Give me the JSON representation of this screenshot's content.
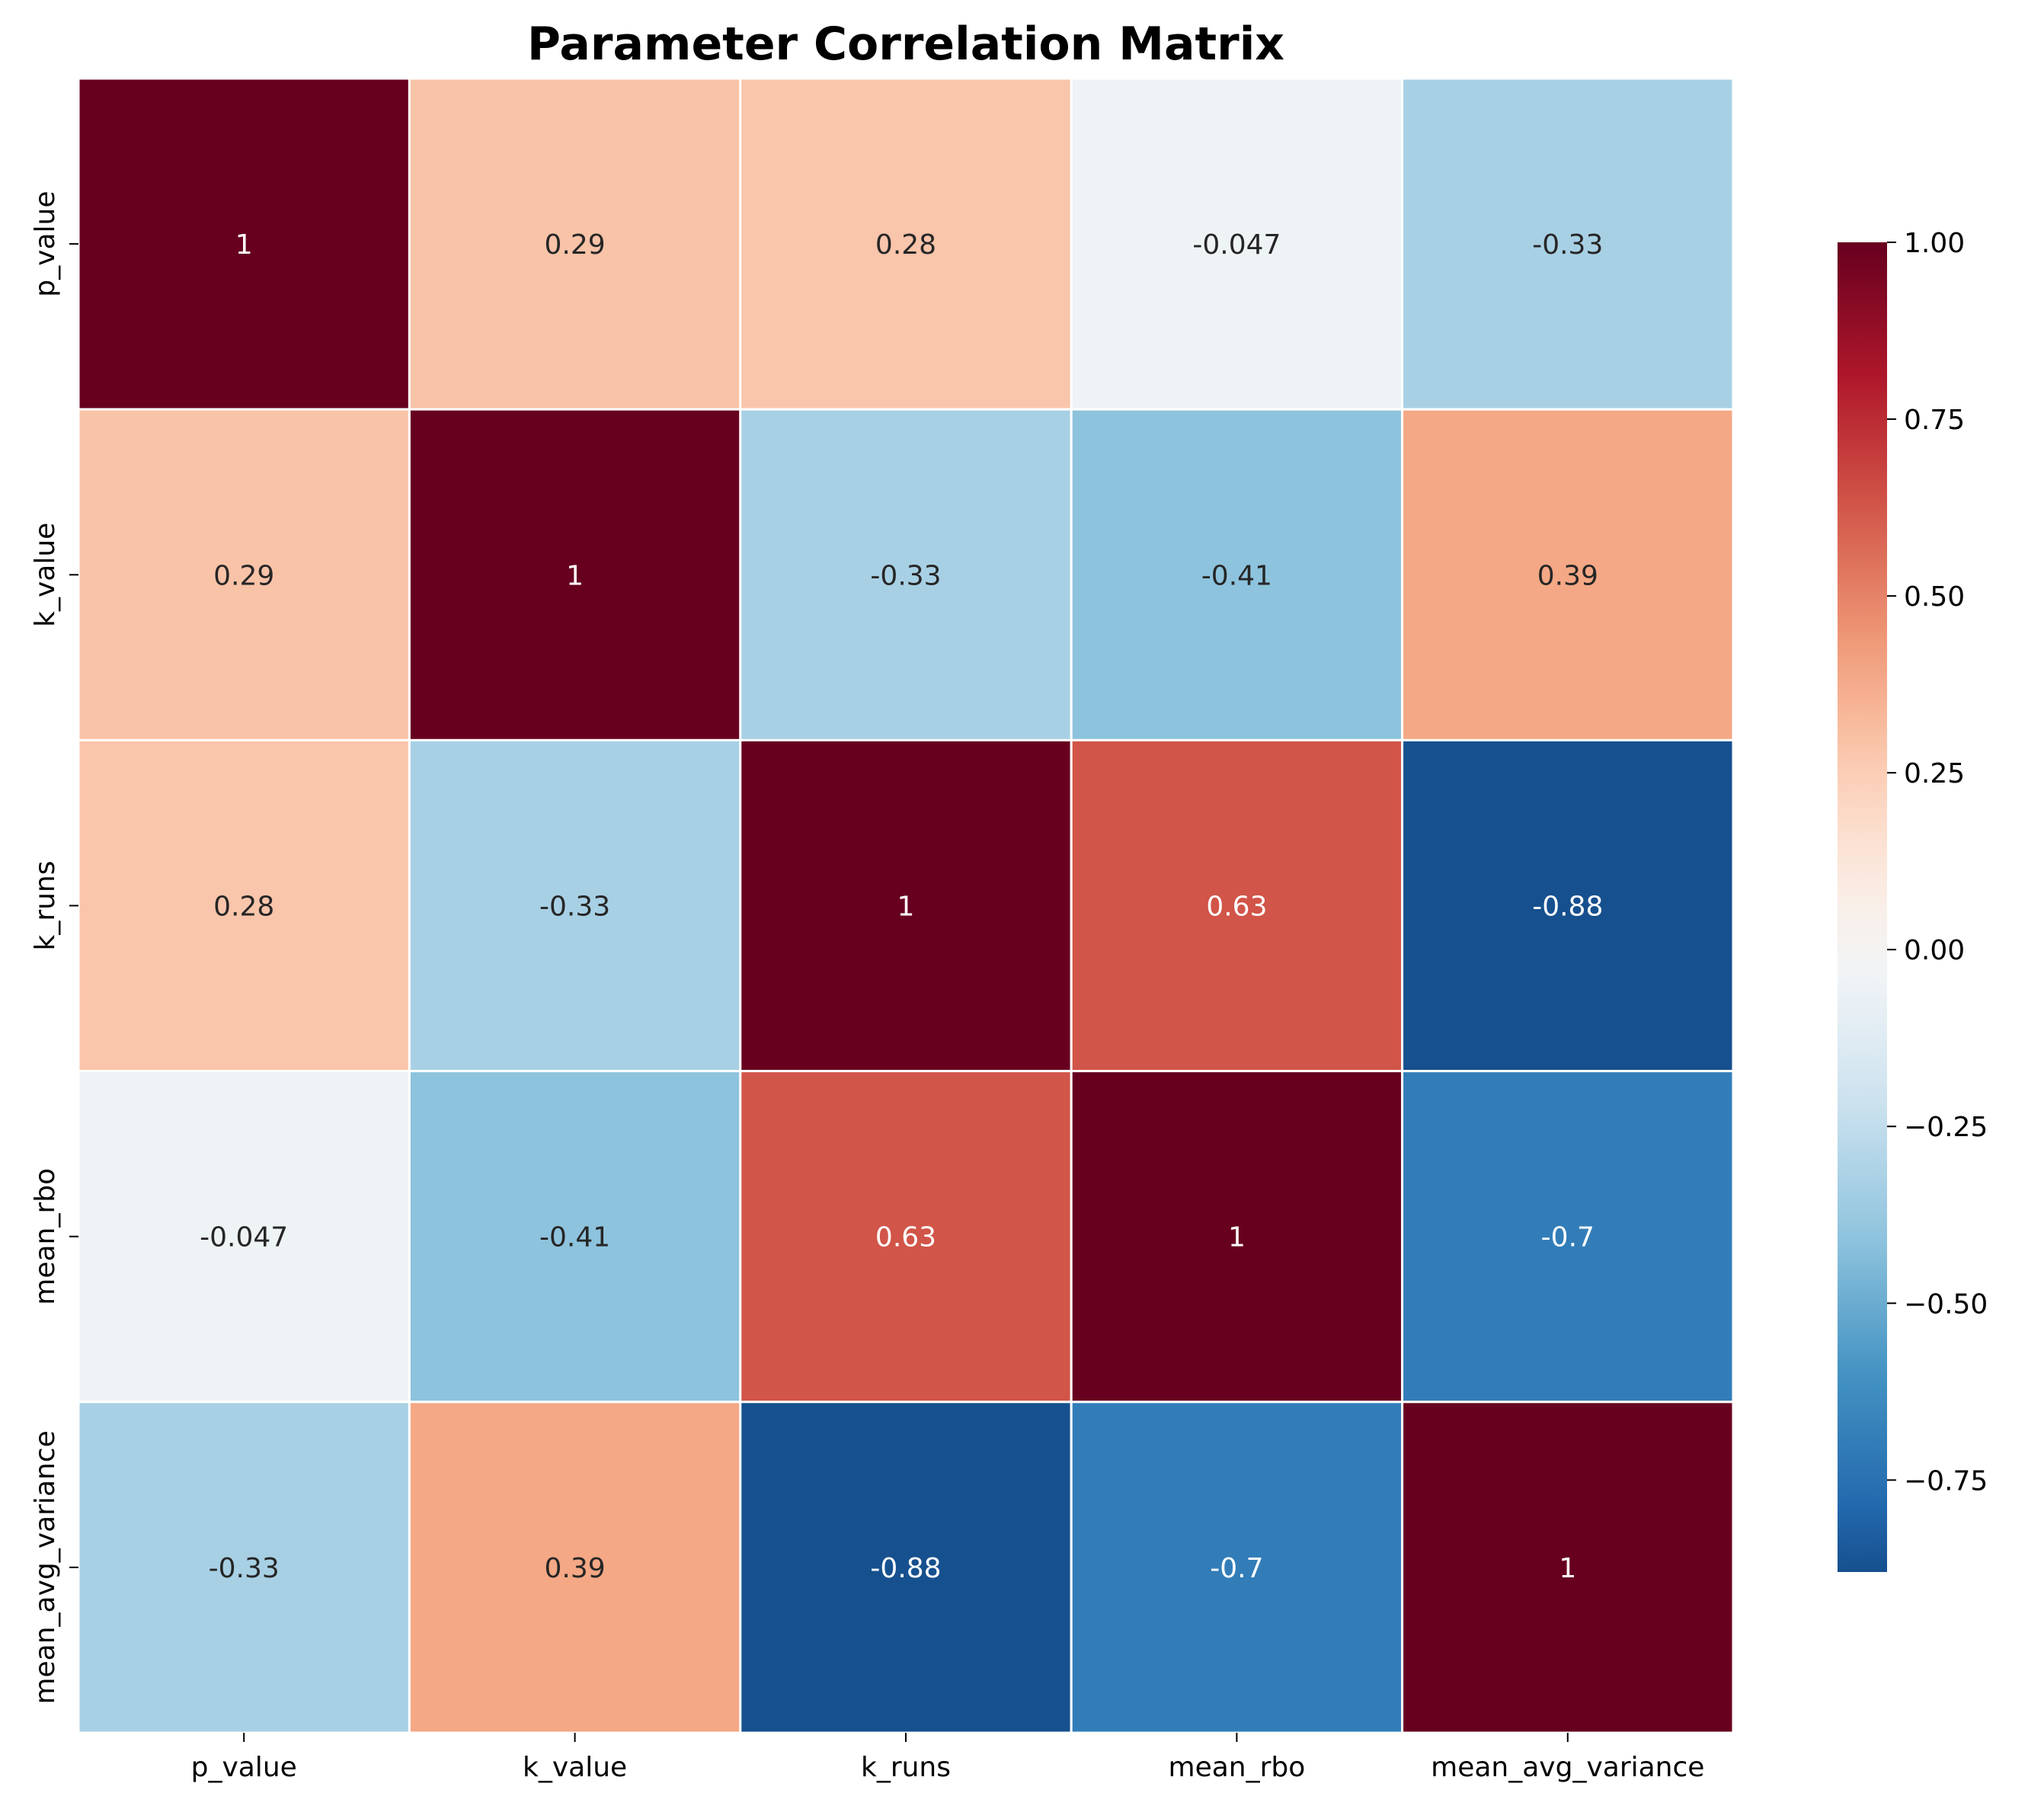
{
  "chart_data": {
    "type": "heatmap",
    "title": "Parameter Correlation Matrix",
    "xlabel": "",
    "ylabel": "",
    "x_categories": [
      "p_value",
      "k_value",
      "k_runs",
      "mean_rbo",
      "mean_avg_variance"
    ],
    "y_categories": [
      "p_value",
      "k_value",
      "k_runs",
      "mean_rbo",
      "mean_avg_variance"
    ],
    "values": [
      [
        1,
        0.29,
        0.28,
        -0.047,
        -0.33
      ],
      [
        0.29,
        1,
        -0.33,
        -0.41,
        0.39
      ],
      [
        0.28,
        -0.33,
        1,
        0.63,
        -0.88
      ],
      [
        -0.047,
        -0.41,
        0.63,
        1,
        -0.7
      ],
      [
        -0.33,
        0.39,
        -0.88,
        -0.7,
        1
      ]
    ],
    "cell_labels": [
      [
        "1",
        "0.29",
        "0.28",
        "-0.047",
        "-0.33"
      ],
      [
        "0.29",
        "1",
        "-0.33",
        "-0.41",
        "0.39"
      ],
      [
        "0.28",
        "-0.33",
        "1",
        "0.63",
        "-0.88"
      ],
      [
        "-0.047",
        "-0.41",
        "0.63",
        "1",
        "-0.7"
      ],
      [
        "-0.33",
        "0.39",
        "-0.88",
        "-0.7",
        "1"
      ]
    ],
    "colormap": "RdBu_r",
    "colorbar": {
      "range": [
        -0.88,
        1.0
      ],
      "ticks": [
        -0.75,
        -0.5,
        -0.25,
        0.0,
        0.25,
        0.5,
        0.75,
        1.0
      ],
      "tick_labels": [
        "−0.75",
        "−0.50",
        "−0.25",
        "0.00",
        "0.25",
        "0.50",
        "0.75",
        "1.00"
      ],
      "placement": "right"
    },
    "colors": {
      "grid_line": "#ffffff",
      "dark_text": "#262626",
      "light_text": "#ffffff"
    }
  }
}
